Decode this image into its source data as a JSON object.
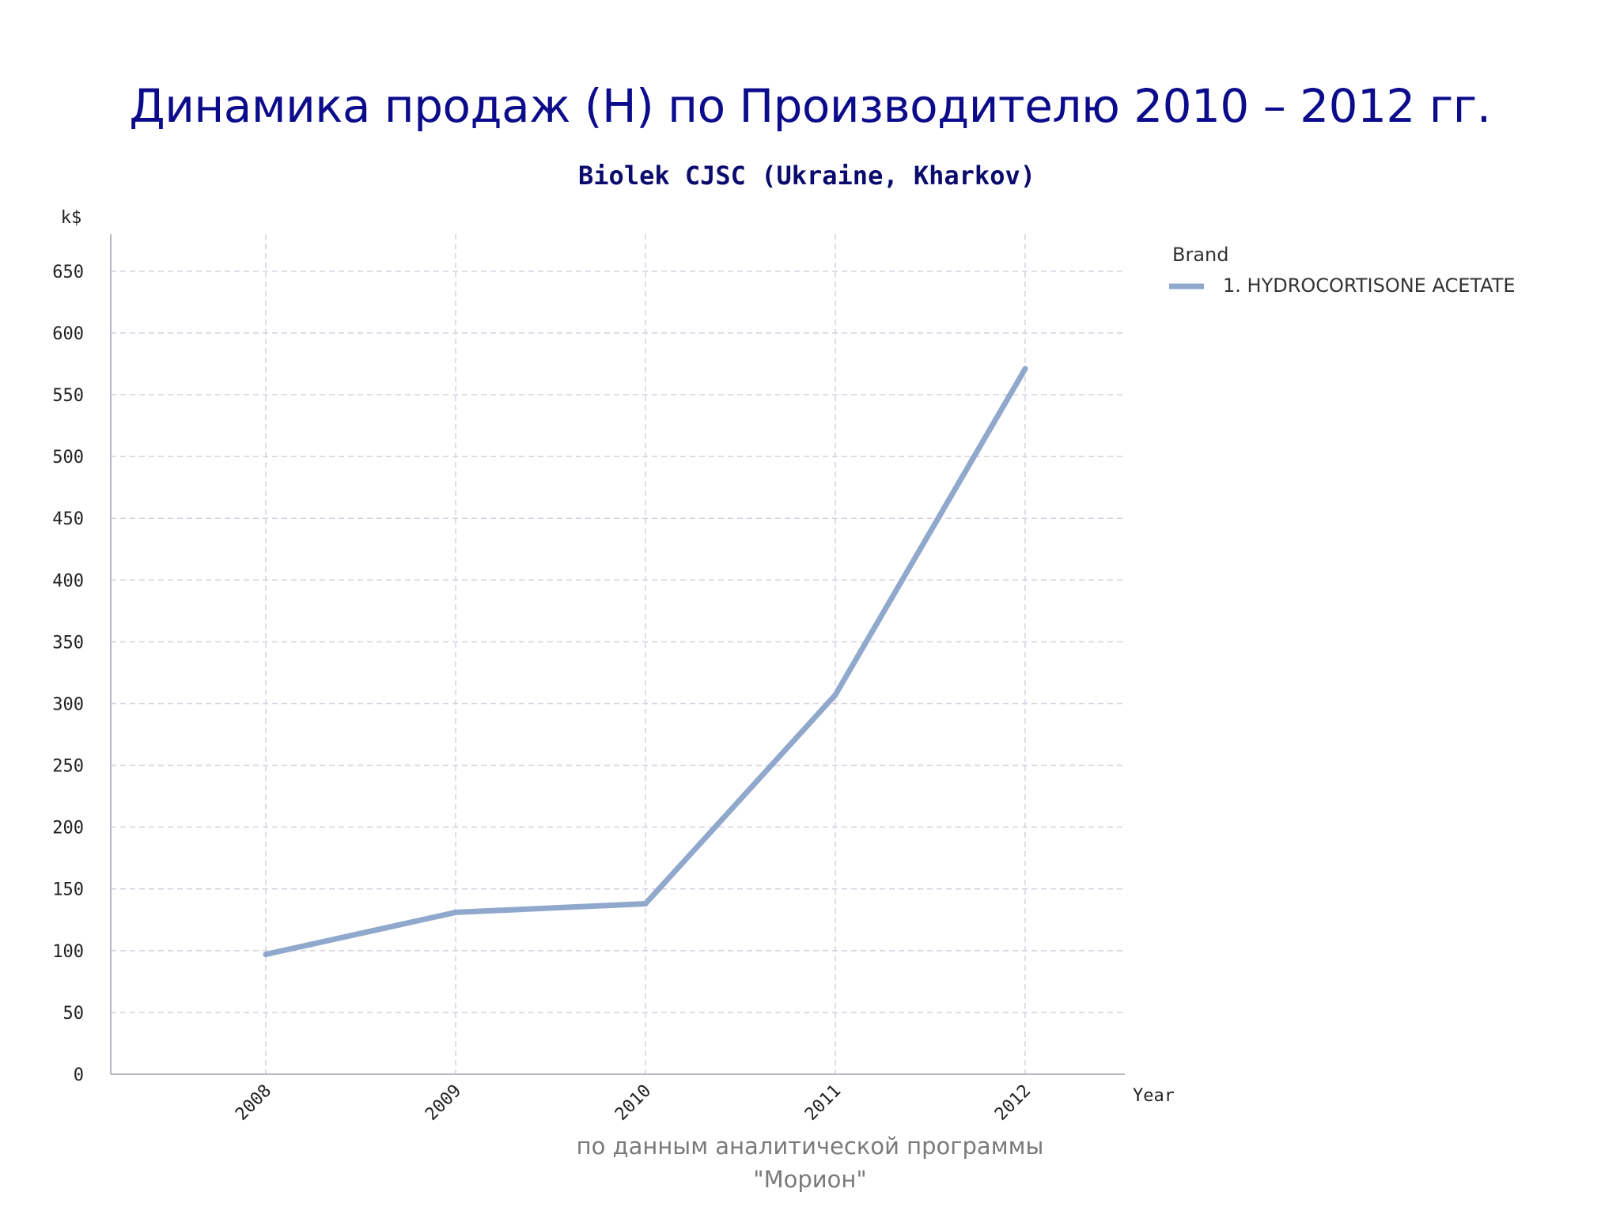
{
  "slide": {
    "title": "Динамика продаж (Н) по Производителю 2010 – 2012 гг.",
    "source_line1": "по данным аналитической программы",
    "source_line2": "\"Морион\""
  },
  "colors": {
    "title": "#0b0b8c",
    "series": "#8fa8cc",
    "grid": "#d8d0e0",
    "axis": "#b8b8c0"
  },
  "chart_data": {
    "type": "line",
    "title": "Biolek CJSC (Ukraine, Kharkov)",
    "ylabel": "k$",
    "xlabel": "Year",
    "x": [
      "2008",
      "2009",
      "2010",
      "2011",
      "2012"
    ],
    "ylim": [
      0,
      680
    ],
    "yticks": [
      0,
      50,
      100,
      150,
      200,
      250,
      300,
      350,
      400,
      450,
      500,
      550,
      600,
      650
    ],
    "grid": true,
    "legend": {
      "title": "Brand",
      "position": "top-right"
    },
    "series": [
      {
        "name": "1. HYDROCORTISONE ACETATE",
        "values": [
          97,
          131,
          138,
          307,
          571
        ]
      }
    ]
  }
}
